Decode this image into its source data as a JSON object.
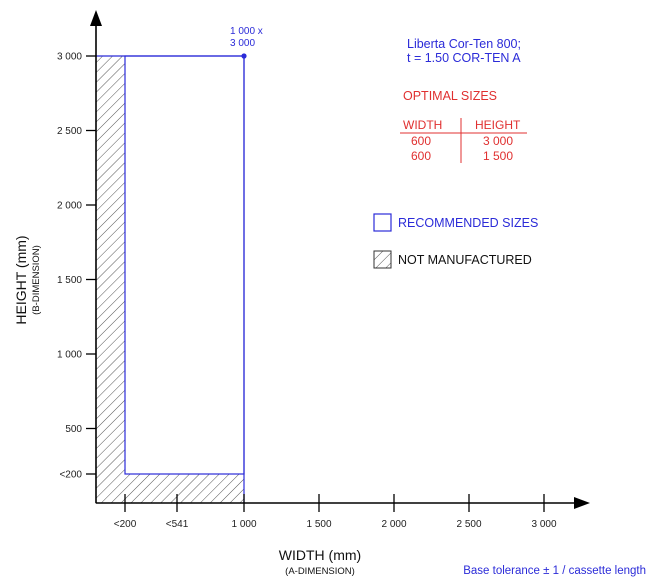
{
  "product": {
    "line1": "Liberta Cor-Ten 800;",
    "line2": "t = 1.50 COR-TEN A"
  },
  "optimal_sizes": {
    "title": "OPTIMAL SIZES",
    "headers": [
      "WIDTH",
      "HEIGHT"
    ],
    "rows": [
      [
        "600",
        "3 000"
      ],
      [
        "600",
        "1 500"
      ]
    ]
  },
  "legend": {
    "recommended": "RECOMMENDED SIZES",
    "not_manufactured": "NOT MANUFACTURED"
  },
  "axes": {
    "x_title": "WIDTH (mm)",
    "x_sub": "(A-DIMENSION)",
    "y_title": "HEIGHT (mm)",
    "y_sub": "(B-DIMENSION)",
    "x_ticks": [
      {
        "label": "<200",
        "value": 200
      },
      {
        "label": "<541",
        "value": 541
      },
      {
        "label": "1 000",
        "value": 1000
      },
      {
        "label": "1 500",
        "value": 1500
      },
      {
        "label": "2 000",
        "value": 2000
      },
      {
        "label": "2 500",
        "value": 2500
      },
      {
        "label": "3 000",
        "value": 3000
      }
    ],
    "y_ticks": [
      {
        "label": "<200",
        "value": 200
      },
      {
        "label": "500",
        "value": 500
      },
      {
        "label": "1 000",
        "value": 1000
      },
      {
        "label": "1 500",
        "value": 1500
      },
      {
        "label": "2 000",
        "value": 2000
      },
      {
        "label": "2 500",
        "value": 2500
      },
      {
        "label": "3 000",
        "value": 3000
      }
    ]
  },
  "corner_point": {
    "width": 1000,
    "height": 3000,
    "label_line1": "1 000 x",
    "label_line2": "3 000"
  },
  "footer": {
    "tolerance": "Base tolerance ± 1 / cassette length"
  },
  "colors": {
    "recommended": "#2b2bd8",
    "optimal": "#e03030",
    "hatch": "#555555",
    "axis": "#000000"
  }
}
